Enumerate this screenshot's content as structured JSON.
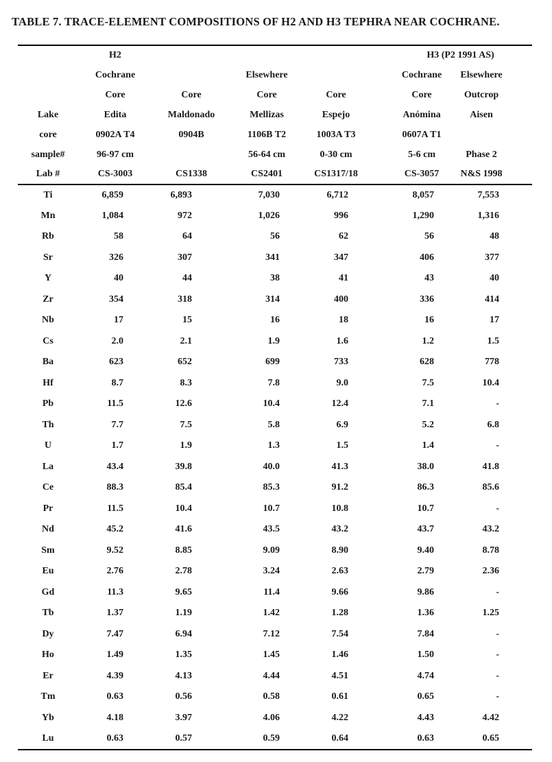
{
  "title": "TABLE 7. TRACE-ELEMENT COMPOSITIONS OF H2 AND H3 TEPHRA NEAR COCHRANE.",
  "colors": {
    "text": "#1a1a1a",
    "rule": "#000000",
    "background": "#ffffff"
  },
  "table": {
    "header_rows": [
      [
        {
          "t": ""
        },
        {
          "t": "H2"
        },
        {
          "t": ""
        },
        {
          "t": ""
        },
        {
          "t": ""
        },
        {
          "t": "H3 (P2 1991 AS)",
          "s": 2
        }
      ],
      [
        {
          "t": ""
        },
        {
          "t": "Cochrane"
        },
        {
          "t": ""
        },
        {
          "t": "Elsewhere"
        },
        {
          "t": ""
        },
        {
          "t": "Cochrane"
        },
        {
          "t": "Elsewhere"
        }
      ],
      [
        {
          "t": ""
        },
        {
          "t": "Core"
        },
        {
          "t": "Core"
        },
        {
          "t": "Core"
        },
        {
          "t": "Core"
        },
        {
          "t": "Core"
        },
        {
          "t": "Outcrop"
        }
      ],
      [
        {
          "t": "Lake"
        },
        {
          "t": "Edita"
        },
        {
          "t": "Maldonado"
        },
        {
          "t": "Mellizas"
        },
        {
          "t": "Espejo"
        },
        {
          "t": "Anómina"
        },
        {
          "t": "Aisen"
        }
      ],
      [
        {
          "t": "core"
        },
        {
          "t": "0902A T4"
        },
        {
          "t": "0904B"
        },
        {
          "t": "1106B T2"
        },
        {
          "t": "1003A T3"
        },
        {
          "t": "0607A T1"
        },
        {
          "t": ""
        }
      ],
      [
        {
          "t": "sample#"
        },
        {
          "t": "96-97 cm"
        },
        {
          "t": ""
        },
        {
          "t": "56-64 cm"
        },
        {
          "t": "0-30 cm"
        },
        {
          "t": "5-6 cm"
        },
        {
          "t": "Phase 2"
        }
      ],
      [
        {
          "t": "Lab #"
        },
        {
          "t": "CS-3003"
        },
        {
          "t": "CS1338"
        },
        {
          "t": "CS2401"
        },
        {
          "t": "CS1317/18"
        },
        {
          "t": "CS-3057"
        },
        {
          "t": "N&S 1998"
        }
      ]
    ],
    "rows": [
      {
        "element": "Ti",
        "values": [
          "6,859",
          "6,893",
          "7,030",
          "6,712",
          "8,057",
          "7,553"
        ]
      },
      {
        "element": "Mn",
        "values": [
          "1,084",
          "972",
          "1,026",
          "996",
          "1,290",
          "1,316"
        ]
      },
      {
        "element": "Rb",
        "values": [
          "58",
          "64",
          "56",
          "62",
          "56",
          "48"
        ]
      },
      {
        "element": "Sr",
        "values": [
          "326",
          "307",
          "341",
          "347",
          "406",
          "377"
        ]
      },
      {
        "element": "Y",
        "values": [
          "40",
          "44",
          "38",
          "41",
          "43",
          "40"
        ]
      },
      {
        "element": "Zr",
        "values": [
          "354",
          "318",
          "314",
          "400",
          "336",
          "414"
        ]
      },
      {
        "element": "Nb",
        "values": [
          "17",
          "15",
          "16",
          "18",
          "16",
          "17"
        ]
      },
      {
        "element": "Cs",
        "values": [
          "2.0",
          "2.1",
          "1.9",
          "1.6",
          "1.2",
          "1.5"
        ]
      },
      {
        "element": "Ba",
        "values": [
          "623",
          "652",
          "699",
          "733",
          "628",
          "778"
        ]
      },
      {
        "element": "Hf",
        "values": [
          "8.7",
          "8.3",
          "7.8",
          "9.0",
          "7.5",
          "10.4"
        ]
      },
      {
        "element": "Pb",
        "values": [
          "11.5",
          "12.6",
          "10.4",
          "12.4",
          "7.1",
          "-"
        ]
      },
      {
        "element": "Th",
        "values": [
          "7.7",
          "7.5",
          "5.8",
          "6.9",
          "5.2",
          "6.8"
        ]
      },
      {
        "element": "U",
        "values": [
          "1.7",
          "1.9",
          "1.3",
          "1.5",
          "1.4",
          "-"
        ]
      },
      {
        "element": "La",
        "values": [
          "43.4",
          "39.8",
          "40.0",
          "41.3",
          "38.0",
          "41.8"
        ]
      },
      {
        "element": "Ce",
        "values": [
          "88.3",
          "85.4",
          "85.3",
          "91.2",
          "86.3",
          "85.6"
        ]
      },
      {
        "element": "Pr",
        "values": [
          "11.5",
          "10.4",
          "10.7",
          "10.8",
          "10.7",
          "-"
        ]
      },
      {
        "element": "Nd",
        "values": [
          "45.2",
          "41.6",
          "43.5",
          "43.2",
          "43.7",
          "43.2"
        ]
      },
      {
        "element": "Sm",
        "values": [
          "9.52",
          "8.85",
          "9.09",
          "8.90",
          "9.40",
          "8.78"
        ]
      },
      {
        "element": "Eu",
        "values": [
          "2.76",
          "2.78",
          "3.24",
          "2.63",
          "2.79",
          "2.36"
        ]
      },
      {
        "element": "Gd",
        "values": [
          "11.3",
          "9.65",
          "11.4",
          "9.66",
          "9.86",
          "-"
        ]
      },
      {
        "element": "Tb",
        "values": [
          "1.37",
          "1.19",
          "1.42",
          "1.28",
          "1.36",
          "1.25"
        ]
      },
      {
        "element": "Dy",
        "values": [
          "7.47",
          "6.94",
          "7.12",
          "7.54",
          "7.84",
          "-"
        ]
      },
      {
        "element": "Ho",
        "values": [
          "1.49",
          "1.35",
          "1.45",
          "1.46",
          "1.50",
          "-"
        ]
      },
      {
        "element": "Er",
        "values": [
          "4.39",
          "4.13",
          "4.44",
          "4.51",
          "4.74",
          "-"
        ]
      },
      {
        "element": "Tm",
        "values": [
          "0.63",
          "0.56",
          "0.58",
          "0.61",
          "0.65",
          "-"
        ]
      },
      {
        "element": "Yb",
        "values": [
          "4.18",
          "3.97",
          "4.06",
          "4.22",
          "4.43",
          "4.42"
        ]
      },
      {
        "element": "Lu",
        "values": [
          "0.63",
          "0.57",
          "0.59",
          "0.64",
          "0.63",
          "0.65"
        ]
      }
    ]
  }
}
